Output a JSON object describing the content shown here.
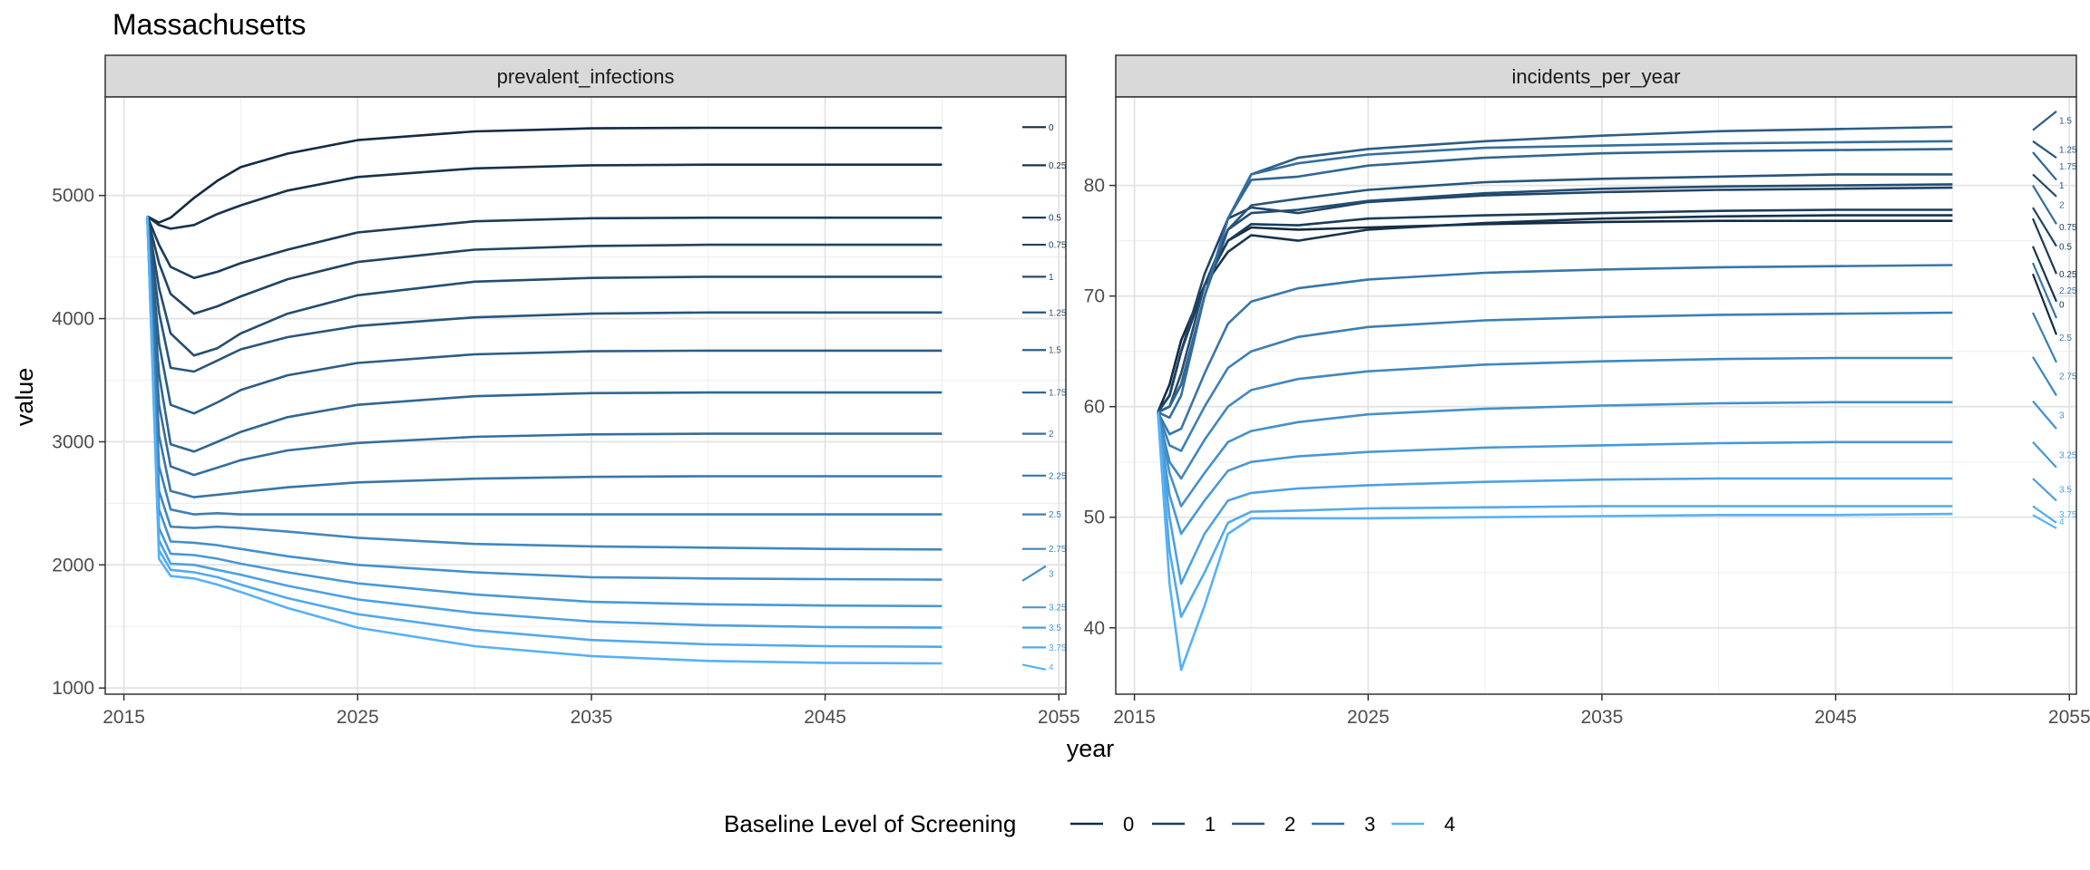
{
  "chart_data": {
    "type": "line",
    "title": "Massachusetts",
    "xlabel": "year",
    "ylabel": "value",
    "legend": {
      "title": "Baseline Level of Screening",
      "position": "bottom",
      "entries": [
        {
          "label": "0",
          "color": "#132B43"
        },
        {
          "label": "1",
          "color": "#1D3F5E"
        },
        {
          "label": "2",
          "color": "#285779"
        },
        {
          "label": "3",
          "color": "#3370A8"
        },
        {
          "label": "4",
          "color": "#56B1F7"
        }
      ]
    },
    "grid": true,
    "x_ticks": [
      2015,
      2025,
      2035,
      2045,
      2055
    ],
    "xlim": [
      2014.2,
      2055.3
    ],
    "levels": [
      "0",
      "0.25",
      "0.5",
      "0.75",
      "1",
      "1.25",
      "1.5",
      "1.75",
      "2",
      "2.25",
      "2.5",
      "2.75",
      "3",
      "3.25",
      "3.5",
      "3.75",
      "4"
    ],
    "level_values": [
      0,
      0.25,
      0.5,
      0.75,
      1,
      1.25,
      1.5,
      1.75,
      2,
      2.25,
      2.5,
      2.75,
      3,
      3.25,
      3.5,
      3.75,
      4
    ],
    "color_scale": {
      "low": "#132B43",
      "high": "#56B1F7"
    },
    "x": [
      2016,
      2016.5,
      2017,
      2018,
      2019,
      2020,
      2022,
      2025,
      2030,
      2035,
      2040,
      2045,
      2050
    ],
    "panels": [
      {
        "strip": "prevalent_infections",
        "ylim": [
          950,
          5800
        ],
        "y_ticks": [
          1000,
          2000,
          3000,
          4000,
          5000
        ],
        "series": [
          {
            "name": "0",
            "values": [
              4830,
              4780,
              4820,
              4980,
              5120,
              5230,
              5340,
              5450,
              5520,
              5545,
              5550,
              5550,
              5550
            ]
          },
          {
            "name": "0.25",
            "values": [
              4830,
              4760,
              4730,
              4760,
              4850,
              4920,
              5040,
              5150,
              5220,
              5245,
              5250,
              5250,
              5250
            ]
          },
          {
            "name": "0.5",
            "values": [
              4830,
              4600,
              4420,
              4330,
              4380,
              4450,
              4560,
              4700,
              4790,
              4815,
              4820,
              4820,
              4820
            ]
          },
          {
            "name": "0.75",
            "values": [
              4830,
              4450,
              4200,
              4040,
              4100,
              4180,
              4320,
              4460,
              4560,
              4590,
              4600,
              4600,
              4600
            ]
          },
          {
            "name": "1",
            "values": [
              4830,
              4250,
              3880,
              3700,
              3760,
              3880,
              4040,
              4190,
              4300,
              4330,
              4340,
              4340,
              4340
            ]
          },
          {
            "name": "1.25",
            "values": [
              4830,
              4050,
              3600,
              3570,
              3660,
              3750,
              3850,
              3940,
              4010,
              4040,
              4050,
              4050,
              4050
            ]
          },
          {
            "name": "1.5",
            "values": [
              4830,
              3800,
              3300,
              3230,
              3320,
              3420,
              3540,
              3640,
              3710,
              3735,
              3740,
              3740,
              3740
            ]
          },
          {
            "name": "1.75",
            "values": [
              4830,
              3550,
              2980,
              2920,
              3000,
              3080,
              3200,
              3300,
              3370,
              3395,
              3400,
              3400,
              3400
            ]
          },
          {
            "name": "2",
            "values": [
              4830,
              3300,
              2800,
              2730,
              2790,
              2850,
              2930,
              2990,
              3040,
              3060,
              3065,
              3065,
              3065
            ]
          },
          {
            "name": "2.25",
            "values": [
              4830,
              3050,
              2600,
              2550,
              2570,
              2590,
              2630,
              2670,
              2700,
              2715,
              2720,
              2720,
              2720
            ]
          },
          {
            "name": "2.5",
            "values": [
              4830,
              2800,
              2450,
              2410,
              2420,
              2410,
              2410,
              2410,
              2410,
              2410,
              2410,
              2410,
              2410
            ]
          },
          {
            "name": "2.75",
            "values": [
              4830,
              2600,
              2310,
              2300,
              2310,
              2300,
              2270,
              2220,
              2170,
              2150,
              2140,
              2130,
              2125
            ]
          },
          {
            "name": "3",
            "values": [
              4830,
              2450,
              2190,
              2180,
              2160,
              2130,
              2070,
              2000,
              1940,
              1900,
              1890,
              1885,
              1880
            ]
          },
          {
            "name": "3.25",
            "values": [
              4830,
              2300,
              2090,
              2080,
              2050,
              2010,
              1940,
              1850,
              1760,
              1700,
              1680,
              1670,
              1665
            ]
          },
          {
            "name": "3.5",
            "values": [
              4830,
              2200,
              2010,
              2000,
              1960,
              1920,
              1830,
              1720,
              1610,
              1540,
              1510,
              1495,
              1490
            ]
          },
          {
            "name": "3.75",
            "values": [
              4830,
              2120,
              1960,
              1940,
              1900,
              1840,
              1730,
              1600,
              1470,
              1390,
              1355,
              1340,
              1335
            ]
          },
          {
            "name": "4",
            "values": [
              4830,
              2050,
              1910,
              1890,
              1840,
              1780,
              1650,
              1490,
              1340,
              1260,
              1220,
              1205,
              1200
            ]
          }
        ],
        "end_marks": [
          {
            "label": "0",
            "y0": 5555,
            "y1": 5555
          },
          {
            "label": "0.25",
            "y0": 5245,
            "y1": 5245
          },
          {
            "label": "0.5",
            "y0": 4820,
            "y1": 4820
          },
          {
            "label": "0.75",
            "y0": 4600,
            "y1": 4600
          },
          {
            "label": "1",
            "y0": 4340,
            "y1": 4340
          },
          {
            "label": "1.25",
            "y0": 4050,
            "y1": 4050
          },
          {
            "label": "1.5",
            "y0": 3745,
            "y1": 3745
          },
          {
            "label": "1.75",
            "y0": 3400,
            "y1": 3400
          },
          {
            "label": "2",
            "y0": 3065,
            "y1": 3065
          },
          {
            "label": "2.25",
            "y0": 2725,
            "y1": 2725
          },
          {
            "label": "2.5",
            "y0": 2410,
            "y1": 2410
          },
          {
            "label": "2.75",
            "y0": 2130,
            "y1": 2130
          },
          {
            "label": "3",
            "y0": 1870,
            "y1": 1990
          },
          {
            "label": "3.25",
            "y0": 1655,
            "y1": 1655
          },
          {
            "label": "3.5",
            "y0": 1490,
            "y1": 1490
          },
          {
            "label": "3.75",
            "y0": 1330,
            "y1": 1330
          },
          {
            "label": "4",
            "y0": 1190,
            "y1": 1150
          }
        ]
      },
      {
        "strip": "incidents_per_year",
        "ylim": [
          34,
          88
        ],
        "y_ticks": [
          40,
          50,
          60,
          70,
          80
        ],
        "series": [
          {
            "name": "0",
            "values": [
              59.5,
              62,
              66,
              71,
              75,
              76.2,
              76.0,
              76.2,
              76.5,
              76.7,
              76.8,
              76.8,
              76.8
            ]
          },
          {
            "name": "0.25",
            "values": [
              59.5,
              61,
              65,
              71,
              74,
              75.5,
              75.0,
              76.0,
              76.6,
              77.0,
              77.2,
              77.3,
              77.3
            ]
          },
          {
            "name": "0.5",
            "values": [
              59.5,
              61,
              65,
              71,
              75,
              76.5,
              76.4,
              77.0,
              77.3,
              77.5,
              77.7,
              77.8,
              77.8
            ]
          },
          {
            "name": "0.75",
            "values": [
              59.5,
              61,
              65,
              72,
              77,
              78.0,
              77.5,
              78.5,
              79.1,
              79.4,
              79.6,
              79.7,
              79.8
            ]
          },
          {
            "name": "1",
            "values": [
              59.5,
              60,
              63,
              71,
              76,
              77.5,
              77.8,
              78.6,
              79.3,
              79.7,
              79.9,
              80.0,
              80.1
            ]
          },
          {
            "name": "1.25",
            "values": [
              59.5,
              60,
              62,
              70,
              76,
              78.2,
              78.8,
              79.6,
              80.3,
              80.6,
              80.8,
              81.0,
              81.0
            ]
          },
          {
            "name": "1.5",
            "values": [
              59.5,
              60,
              62,
              70,
              77,
              81.0,
              82.5,
              83.3,
              84.0,
              84.5,
              84.9,
              85.1,
              85.3
            ]
          },
          {
            "name": "1.75",
            "values": [
              59.5,
              60,
              62,
              70,
              77,
              80.5,
              80.8,
              81.8,
              82.5,
              82.9,
              83.1,
              83.2,
              83.3
            ]
          },
          {
            "name": "2",
            "values": [
              59.5,
              59,
              61,
              70,
              77,
              81.0,
              82.0,
              82.8,
              83.4,
              83.6,
              83.8,
              83.9,
              84.0
            ]
          },
          {
            "name": "2.25",
            "values": [
              59.5,
              57.5,
              58,
              63,
              67.5,
              69.5,
              70.7,
              71.5,
              72.1,
              72.4,
              72.6,
              72.7,
              72.8
            ]
          },
          {
            "name": "2.5",
            "values": [
              59.5,
              56.5,
              56,
              60,
              63.5,
              65.0,
              66.3,
              67.2,
              67.8,
              68.1,
              68.3,
              68.4,
              68.5
            ]
          },
          {
            "name": "2.75",
            "values": [
              59.5,
              55,
              53.5,
              57,
              60,
              61.5,
              62.5,
              63.2,
              63.8,
              64.1,
              64.3,
              64.4,
              64.4
            ]
          },
          {
            "name": "3",
            "values": [
              59.5,
              54,
              51,
              54,
              56.8,
              57.8,
              58.6,
              59.3,
              59.8,
              60.1,
              60.3,
              60.4,
              60.4
            ]
          },
          {
            "name": "3.25",
            "values": [
              59.5,
              52,
              48.5,
              51.5,
              54.2,
              55.0,
              55.5,
              55.9,
              56.3,
              56.5,
              56.7,
              56.8,
              56.8
            ]
          },
          {
            "name": "3.5",
            "values": [
              59.5,
              50,
              44,
              48.5,
              51.5,
              52.2,
              52.6,
              52.9,
              53.2,
              53.4,
              53.5,
              53.5,
              53.5
            ]
          },
          {
            "name": "3.75",
            "values": [
              59.5,
              47,
              41,
              45,
              49.5,
              50.5,
              50.6,
              50.8,
              50.9,
              51.0,
              51.0,
              51.0,
              51.0
            ]
          },
          {
            "name": "4",
            "values": [
              59.5,
              44,
              36.2,
              42,
              48.5,
              49.9,
              49.9,
              49.9,
              50.0,
              50.1,
              50.2,
              50.2,
              50.3
            ]
          }
        ],
        "end_marks": [
          {
            "label": "1.5",
            "y0": 85.0,
            "y1": 86.7
          },
          {
            "label": "1.25",
            "y0": 84.0,
            "y1": 82.5
          },
          {
            "label": "1.75",
            "y0": 83.0,
            "y1": 80.5
          },
          {
            "label": "1",
            "y0": 81.0,
            "y1": 79.0
          },
          {
            "label": "2",
            "y0": 80.0,
            "y1": 76.5
          },
          {
            "label": "0.75",
            "y0": 78.0,
            "y1": 74.5
          },
          {
            "label": "0.5",
            "y0": 77.0,
            "y1": 72.0
          },
          {
            "label": "0.25",
            "y0": 74.5,
            "y1": 69.5
          },
          {
            "label": "2.25",
            "y0": 73.0,
            "y1": 68.0
          },
          {
            "label": "0",
            "y0": 72.0,
            "y1": 66.5
          },
          {
            "label": "2.5",
            "y0": 68.5,
            "y1": 64.0
          },
          {
            "label": "2.75",
            "y0": 64.5,
            "y1": 61.0
          },
          {
            "label": "3",
            "y0": 60.5,
            "y1": 58.0
          },
          {
            "label": "3.25",
            "y0": 56.8,
            "y1": 54.5
          },
          {
            "label": "3.5",
            "y0": 53.5,
            "y1": 51.5
          },
          {
            "label": "3.75",
            "y0": 51.0,
            "y1": 49.5
          },
          {
            "label": "4",
            "y0": 50.2,
            "y1": 49.0
          }
        ]
      }
    ]
  }
}
